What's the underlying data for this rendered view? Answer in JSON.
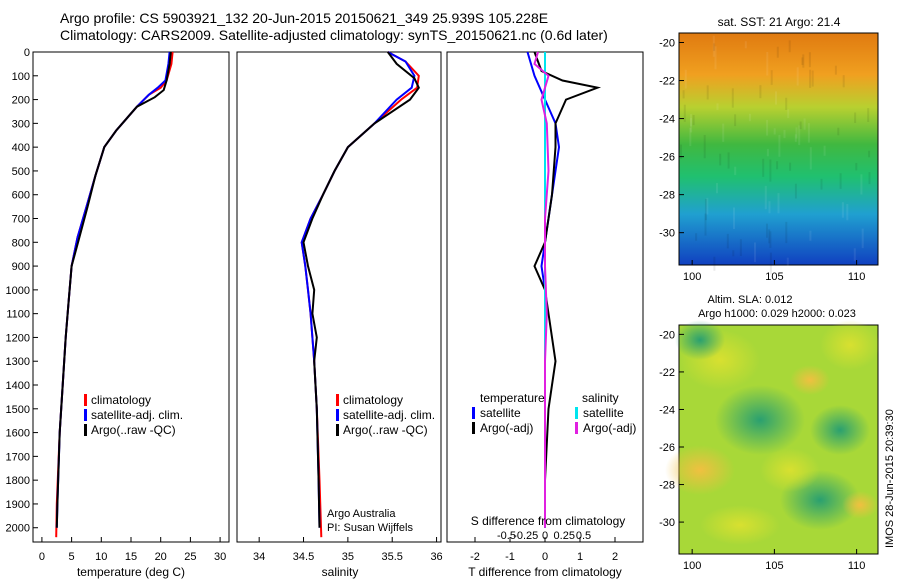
{
  "header": {
    "line1": "Argo profile: CS 5903921_132 20-Jun-2015 20150621_349 25.939S 105.228E",
    "line2": "Climatology: CARS2009. Satellite-adjusted climatology: synTS_20150621.nc (0.6d later)"
  },
  "colors": {
    "climatology": "#ff0000",
    "satellite": "#0000ff",
    "argo": "#000000",
    "sal_satellite": "#00e5ee",
    "sal_argo": "#e020e0"
  },
  "depth_axis": {
    "ticks": [
      "0",
      "100",
      "200",
      "300",
      "400",
      "500",
      "600",
      "700",
      "800",
      "900",
      "1000",
      "1100",
      "1200",
      "1300",
      "1400",
      "1500",
      "1600",
      "1700",
      "1800",
      "1900",
      "2000"
    ],
    "range": [
      0,
      2060
    ]
  },
  "temp_panel": {
    "xlabel": "temperature (deg C)",
    "xticks": [
      "0",
      "5",
      "10",
      "15",
      "20",
      "25",
      "30"
    ],
    "legend": [
      "climatology",
      "satellite-adj. clim.",
      "Argo(..raw -QC)"
    ]
  },
  "sal_panel": {
    "xlabel": "salinity",
    "xticks": [
      "34",
      "34.5",
      "35",
      "35.5",
      "36"
    ],
    "legend": [
      "climatology",
      "satellite-adj. clim.",
      "Argo(..raw -QC)"
    ],
    "note1": "Argo Australia",
    "note2": "PI: Susan Wijffels"
  },
  "diff_panel": {
    "xlabel": "T difference from climatology",
    "xticks": [
      "-2",
      "-1",
      "0",
      "1",
      "2"
    ],
    "slabel": "S difference from climatology",
    "sticks": [
      "-0.5",
      "-0.25",
      "0",
      "0.25",
      "0.5"
    ],
    "legend_t_title": "temperature",
    "legend_s_title": "salinity",
    "legend_t": [
      "satellite",
      "Argo(-adj)"
    ],
    "legend_s": [
      "satellite",
      "Argo(-adj)"
    ]
  },
  "sst_map": {
    "title": "sat. SST: 21 Argo: 21.4",
    "yticks": [
      "-20",
      "-22",
      "-24",
      "-26",
      "-28",
      "-30"
    ],
    "xticks": [
      "100",
      "105",
      "110"
    ]
  },
  "sla_map": {
    "title1": "Altim. SLA: 0.012",
    "title2": "Argo h1000: 0.029 h2000: 0.023",
    "yticks": [
      "-20",
      "-22",
      "-24",
      "-26",
      "-28",
      "-30"
    ],
    "xticks": [
      "100",
      "105",
      "110"
    ]
  },
  "footer": {
    "stamp": "IMOS 28-Jun-2015 20:39:30"
  },
  "chart_data": [
    {
      "type": "line",
      "name": "temperature",
      "xlabel": "temperature (deg C)",
      "ylabel": "",
      "xlim": [
        -1.5,
        31.5
      ],
      "ylim": [
        2060,
        0
      ],
      "series": [
        {
          "name": "climatology",
          "x": [
            22,
            21.8,
            21,
            20,
            18,
            16,
            12.5,
            10.5,
            9,
            7.5,
            6,
            5,
            4.5,
            4,
            3.5,
            3,
            2.5,
            2.4
          ],
          "y": [
            0,
            50,
            120,
            150,
            180,
            230,
            330,
            400,
            520,
            650,
            780,
            900,
            1050,
            1200,
            1400,
            1600,
            1900,
            2040
          ]
        },
        {
          "name": "satellite-adj. clim.",
          "x": [
            21.5,
            21.3,
            20.8,
            19.5,
            18,
            16,
            12.5,
            10.5,
            9,
            7.5,
            6,
            5,
            4.5,
            4,
            3.5,
            3,
            2.6,
            2.5
          ],
          "y": [
            0,
            50,
            120,
            150,
            180,
            230,
            330,
            400,
            520,
            650,
            780,
            900,
            1050,
            1200,
            1400,
            1600,
            1900,
            2000
          ]
        },
        {
          "name": "Argo(..raw -QC)",
          "x": [
            21.7,
            21.5,
            21,
            20.5,
            19,
            16,
            12.5,
            10.5,
            9,
            7.7,
            6.2,
            5,
            4.5,
            4,
            3.5,
            3,
            2.6,
            2.5
          ],
          "y": [
            0,
            50,
            120,
            160,
            190,
            230,
            330,
            400,
            520,
            650,
            790,
            900,
            1050,
            1200,
            1400,
            1600,
            1900,
            2000
          ]
        }
      ]
    },
    {
      "type": "line",
      "name": "salinity",
      "xlabel": "salinity",
      "ylabel": "",
      "xlim": [
        33.75,
        36.05
      ],
      "ylim": [
        2060,
        0
      ],
      "series": [
        {
          "name": "climatology",
          "x": [
            35.45,
            35.65,
            35.8,
            35.78,
            35.6,
            35.3,
            35,
            34.85,
            34.72,
            34.58,
            34.48,
            34.52,
            34.55,
            34.58,
            34.6,
            34.62,
            34.65,
            34.68,
            34.7
          ],
          "y": [
            0,
            40,
            100,
            150,
            200,
            300,
            400,
            500,
            600,
            700,
            800,
            900,
            1000,
            1100,
            1200,
            1300,
            1500,
            1800,
            2040
          ]
        },
        {
          "name": "satellite-adj. clim.",
          "x": [
            35.45,
            35.65,
            35.75,
            35.72,
            35.55,
            35.3,
            35,
            34.85,
            34.72,
            34.58,
            34.48,
            34.52,
            34.55,
            34.58,
            34.6,
            34.62,
            34.65,
            34.67,
            34.68
          ],
          "y": [
            0,
            40,
            100,
            150,
            200,
            300,
            400,
            500,
            600,
            700,
            800,
            900,
            1000,
            1100,
            1200,
            1300,
            1500,
            1800,
            2000
          ]
        },
        {
          "name": "Argo(..raw -QC)",
          "x": [
            35.45,
            35.55,
            35.75,
            35.8,
            35.7,
            35.3,
            35,
            34.85,
            34.72,
            34.6,
            34.5,
            34.55,
            34.62,
            34.6,
            34.65,
            34.62,
            34.65,
            34.67,
            34.68
          ],
          "y": [
            0,
            50,
            110,
            150,
            200,
            300,
            400,
            500,
            600,
            700,
            800,
            900,
            1000,
            1100,
            1200,
            1300,
            1500,
            1800,
            2000
          ]
        }
      ]
    },
    {
      "type": "line",
      "name": "differences",
      "xlabel": "T difference from climatology",
      "ylabel": "",
      "xlim": [
        -2.8,
        2.8
      ],
      "ylim": [
        2060,
        0
      ],
      "series": [
        {
          "name": "temperature satellite",
          "x": [
            -0.5,
            -0.3,
            0,
            0.3,
            0.4,
            0.3,
            0.2,
            0.1,
            0,
            -0.1,
            0,
            0,
            0,
            0,
            0,
            0
          ],
          "y": [
            0,
            100,
            200,
            300,
            400,
            500,
            600,
            700,
            800,
            900,
            1000,
            1200,
            1400,
            1600,
            1800,
            2000
          ]
        },
        {
          "name": "temperature Argo(-adj)",
          "x": [
            -0.3,
            -0.1,
            0.5,
            1.5,
            0.6,
            0.3,
            0.3,
            0.2,
            0,
            -0.3,
            0,
            0.2,
            0.3,
            0.1,
            0,
            0
          ],
          "y": [
            0,
            80,
            120,
            150,
            200,
            300,
            400,
            600,
            800,
            900,
            1000,
            1200,
            1300,
            1500,
            1800,
            2000
          ]
        },
        {
          "name": "salinity satellite",
          "x": [
            0,
            0,
            0,
            0,
            0,
            0,
            0,
            0,
            0,
            0,
            0,
            0,
            0,
            0
          ],
          "y": [
            0,
            100,
            200,
            400,
            600,
            800,
            900,
            1000,
            1200,
            1400,
            1600,
            1800,
            1900,
            2000
          ]
        },
        {
          "name": "salinity Argo(-adj)",
          "x": [
            -0.2,
            -0.3,
            0.1,
            -0.1,
            0.05,
            0.1,
            0,
            0,
            0.05,
            0,
            0,
            0
          ],
          "y": [
            0,
            50,
            100,
            200,
            300,
            500,
            700,
            900,
            1100,
            1300,
            1600,
            2000
          ]
        }
      ]
    }
  ]
}
